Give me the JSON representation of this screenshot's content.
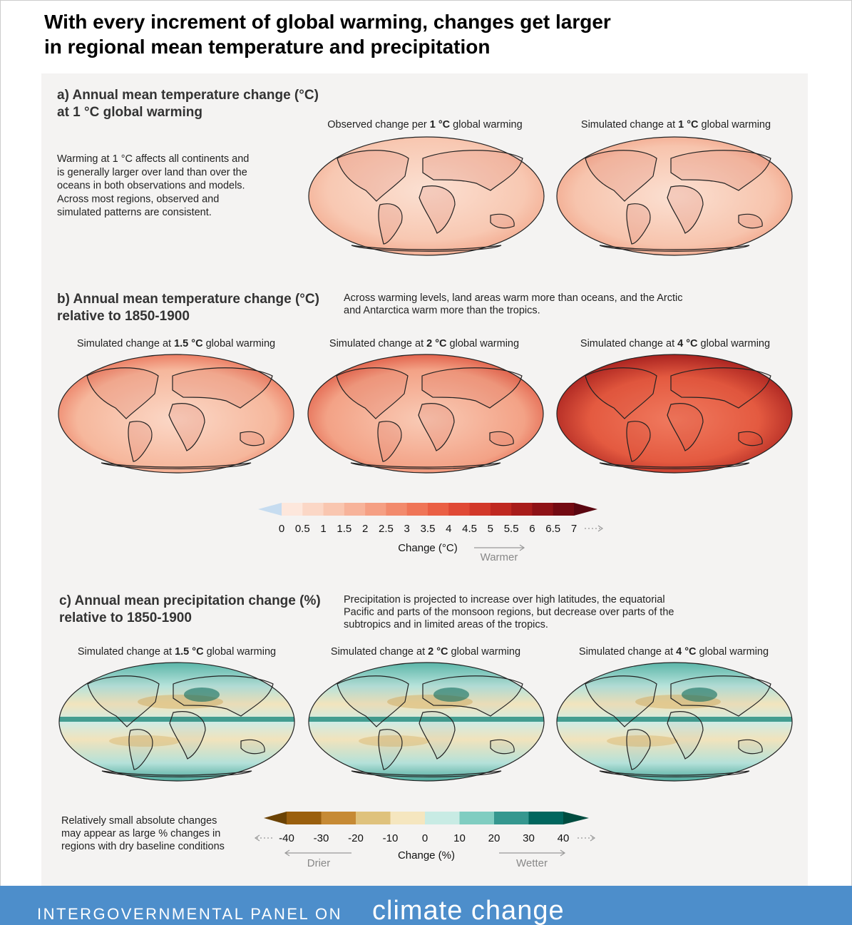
{
  "header": {
    "title_lines": [
      "With every increment of global warming, changes get larger",
      "in regional mean temperature and precipitation"
    ]
  },
  "panel_a": {
    "title_lines": [
      "a) Annual mean temperature change (°C)",
      "at 1 °C global warming"
    ],
    "description_lines": [
      "Warming at 1 °C affects all continents and",
      "is generally larger over land than over the",
      "oceans in both observations and models.",
      "Across most regions, observed and",
      "simulated patterns are consistent."
    ],
    "maps": [
      {
        "caption": [
          "Observed change per ",
          "1 °C",
          " global warming"
        ]
      },
      {
        "caption": [
          "Simulated change at ",
          "1 °C",
          " global warming"
        ]
      }
    ]
  },
  "panel_b": {
    "title_lines": [
      "b) Annual mean temperature change (°C)",
      "relative to 1850-1900"
    ],
    "description_lines": [
      "Across warming levels, land areas warm more than oceans, and the Arctic",
      "and Antarctica warm more than the tropics."
    ],
    "maps": [
      {
        "caption": [
          "Simulated change at ",
          "1.5 °C",
          " global warming"
        ]
      },
      {
        "caption": [
          "Simulated change at ",
          "2 °C",
          " global warming"
        ]
      },
      {
        "caption": [
          "Simulated change at ",
          "4 °C",
          " global warming"
        ]
      }
    ]
  },
  "temperature_scale": {
    "ticks": [
      0,
      0.5,
      1,
      1.5,
      2,
      2.5,
      3,
      3.5,
      4,
      4.5,
      5,
      5.5,
      6,
      6.5,
      7
    ],
    "below_color": "#c6dcf0",
    "segment_colors": [
      "#fde7dc",
      "#fbd7c6",
      "#f9c6b0",
      "#f7b39a",
      "#f59f83",
      "#f28a6c",
      "#ef7557",
      "#ea5f44",
      "#e04935",
      "#d23829",
      "#bf2820",
      "#a81c1a",
      "#8e1216",
      "#730a12"
    ],
    "above_color": "#5a0610",
    "label": "Change (°C)",
    "direction": "Warmer"
  },
  "panel_c": {
    "title_lines": [
      "c) Annual mean precipitation change (%)",
      "relative to 1850-1900"
    ],
    "description_lines": [
      "Precipitation is projected to increase over high latitudes, the equatorial",
      "Pacific and parts of the monsoon regions, but decrease over parts of the",
      "subtropics and in limited areas of the tropics."
    ],
    "maps": [
      {
        "caption": [
          "Simulated change at ",
          "1.5 °C",
          " global warming"
        ]
      },
      {
        "caption": [
          "Simulated change at ",
          "2 °C",
          " global warming"
        ]
      },
      {
        "caption": [
          "Simulated change at ",
          "4 °C",
          " global warming"
        ]
      }
    ],
    "note_lines": [
      "Relatively small absolute changes",
      "may appear as large % changes in",
      "regions with dry baseline conditions"
    ]
  },
  "precipitation_scale": {
    "ticks": [
      -40,
      -30,
      -20,
      -10,
      0,
      10,
      20,
      30,
      40
    ],
    "below_color": "#6b4204",
    "segment_colors": [
      "#9a5f0e",
      "#c68a35",
      "#dfc27d",
      "#f5e6bf",
      "#c8ebe4",
      "#80cdc1",
      "#35978f",
      "#01665e"
    ],
    "above_color": "#004c40",
    "label": "Change (%)",
    "drier": "Drier",
    "wetter": "Wetter"
  },
  "footer": {
    "organization": "INTERGOVERNMENTAL PANEL ON",
    "brand": "climate change"
  }
}
